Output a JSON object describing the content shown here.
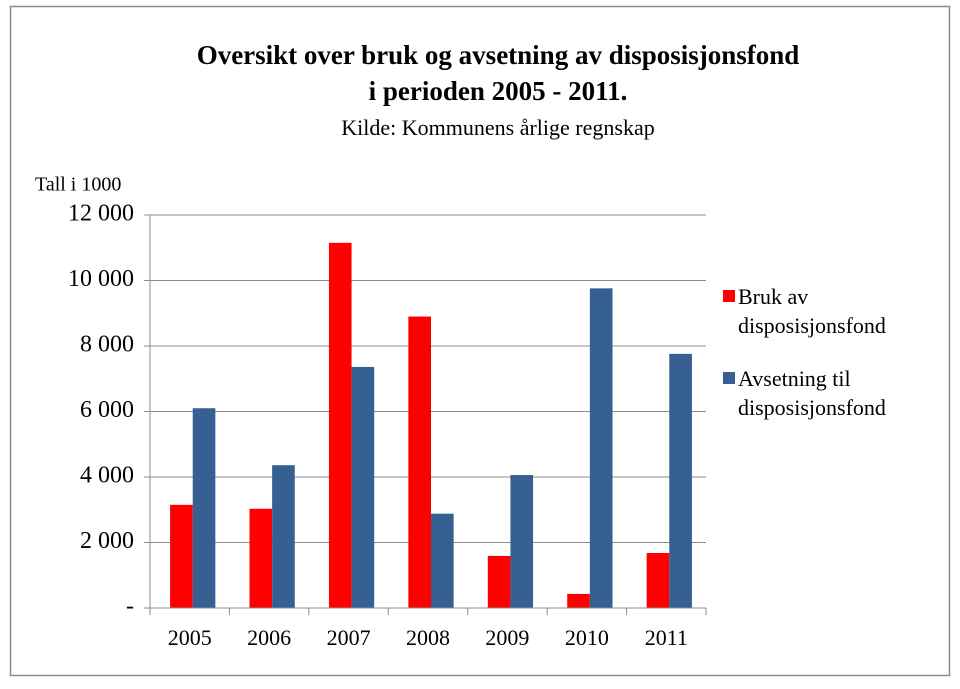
{
  "chart_data": {
    "type": "bar",
    "title": [
      "Oversikt over bruk og avsetning av disposisjonsfond",
      "i perioden 2005 - 2011."
    ],
    "subtitle": "Kilde: Kommunens årlige regnskap",
    "y_label": "Tall i 1000",
    "categories": [
      "2005",
      "2006",
      "2007",
      "2008",
      "2009",
      "2010",
      "2011"
    ],
    "series": [
      {
        "name": "Bruk av disposisjonsfond",
        "color": "#ff0000",
        "values": [
          3150,
          3030,
          11150,
          8900,
          1590,
          430,
          1680
        ]
      },
      {
        "name": "Avsetning til disposisjonsfond",
        "color": "#366092",
        "values": [
          6100,
          4360,
          7360,
          2880,
          4060,
          9760,
          7760
        ]
      }
    ],
    "ylim": [
      0,
      12000
    ],
    "yticks": [
      {
        "value": 0,
        "label": "-"
      },
      {
        "value": 2000,
        "label": "2 000"
      },
      {
        "value": 4000,
        "label": "4 000"
      },
      {
        "value": 6000,
        "label": "6 000"
      },
      {
        "value": 8000,
        "label": "8 000"
      },
      {
        "value": 10000,
        "label": "10 000"
      },
      {
        "value": 12000,
        "label": "12 000"
      }
    ],
    "grid": true,
    "legend": "right"
  }
}
